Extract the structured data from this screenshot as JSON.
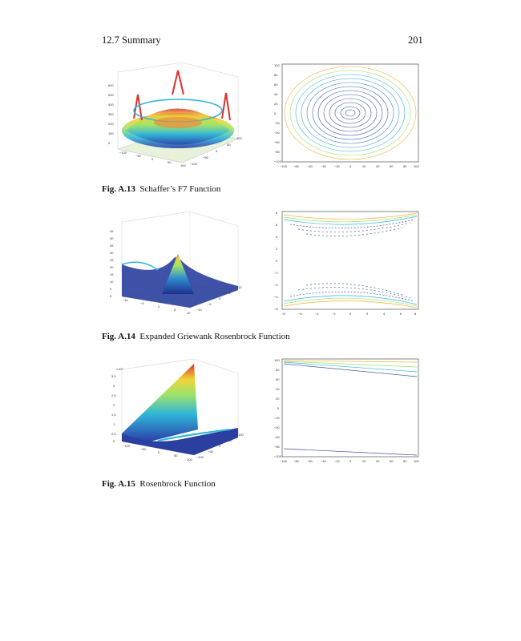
{
  "header": {
    "section": "12.7  Summary",
    "page_number": "201"
  },
  "figures": [
    {
      "label": "Fig. A.13",
      "title": "Schaffer’s F7 Function",
      "surface": {
        "z_ticks": [
          "600",
          "500",
          "400",
          "300",
          "200",
          "100",
          "0"
        ],
        "x_ticks": [
          "−100",
          "−50",
          "0",
          "50",
          "100"
        ],
        "y_ticks": [
          "−100",
          "−50",
          "0",
          "50",
          "100"
        ]
      },
      "contour": {
        "y_ticks": [
          "100",
          "80",
          "60",
          "40",
          "20",
          "0",
          "−20",
          "−40",
          "−60",
          "−80",
          "−100"
        ],
        "x_ticks": [
          "−100",
          "−80",
          "−60",
          "−40",
          "−20",
          "0",
          "20",
          "40",
          "60",
          "80",
          "100"
        ]
      }
    },
    {
      "label": "Fig. A.14",
      "title": "Expanded Griewank Rosenbrock Function",
      "surface": {
        "z_ticks": [
          "45",
          "40",
          "35",
          "30",
          "25",
          "20",
          "15",
          "10",
          "5",
          "0"
        ],
        "x_ticks": [
          "−10",
          "−5",
          "0",
          "5",
          "10"
        ],
        "y_ticks": [
          "−10",
          "−5",
          "0",
          "5",
          "10"
        ]
      },
      "contour": {
        "y_ticks": [
          "8",
          "6",
          "4",
          "2",
          "0",
          "−2",
          "−4",
          "−6",
          "−8"
        ],
        "x_ticks": [
          "−8",
          "−6",
          "−4",
          "−2",
          "0",
          "2",
          "4",
          "6",
          "8"
        ]
      }
    },
    {
      "label": "Fig. A.15",
      "title": "Rosenbrock Function",
      "surface": {
        "exponent": "×10⁹",
        "z_ticks": [
          "3.5",
          "3",
          "2.5",
          "2",
          "1.5",
          "1",
          "0.5",
          "0"
        ],
        "x_ticks": [
          "−100",
          "−50",
          "0",
          "50",
          "100"
        ],
        "y_ticks": [
          "−100",
          "−50",
          "0",
          "50",
          "100"
        ]
      },
      "contour": {
        "y_ticks": [
          "100",
          "80",
          "60",
          "40",
          "20",
          "0",
          "−20",
          "−40",
          "−60",
          "−80",
          "−100"
        ],
        "x_ticks": [
          "−100",
          "−80",
          "−60",
          "−40",
          "−20",
          "0",
          "20",
          "40",
          "60",
          "80",
          "100"
        ]
      }
    }
  ]
}
